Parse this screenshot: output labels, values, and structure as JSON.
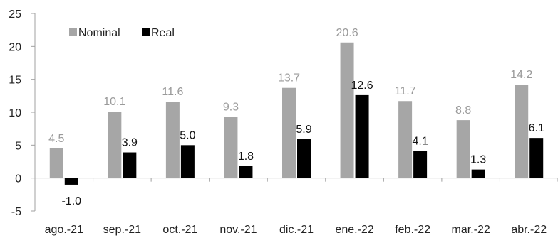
{
  "chart_data": {
    "type": "bar",
    "categories": [
      "ago.-21",
      "sep.-21",
      "oct.-21",
      "nov.-21",
      "dic.-21",
      "ene.-22",
      "feb.-22",
      "mar.-22",
      "abr.-22"
    ],
    "series": [
      {
        "name": "Nominal",
        "color": "#a6a6a6",
        "values": [
          4.5,
          10.1,
          11.6,
          9.3,
          13.7,
          20.6,
          11.7,
          8.8,
          14.2
        ],
        "labels": [
          "4.5",
          "10.1",
          "11.6",
          "9.3",
          "13.7",
          "20.6",
          "11.7",
          "8.8",
          "14.2"
        ]
      },
      {
        "name": "Real",
        "color": "#000000",
        "values": [
          -1.0,
          3.9,
          5.0,
          1.8,
          5.9,
          12.6,
          4.1,
          1.3,
          6.1
        ],
        "labels": [
          "-1.0",
          "3.9",
          "5.0",
          "1.8",
          "5.9",
          "12.6",
          "4.1",
          "1.3",
          "6.1"
        ]
      }
    ],
    "ylim": [
      -5,
      25
    ],
    "yticks": [
      -5,
      0,
      5,
      10,
      15,
      20,
      25
    ],
    "ytick_labels": [
      "-5",
      "0",
      "5",
      "10",
      "15",
      "20",
      "25"
    ],
    "legend_placement": "top-left",
    "grid": false,
    "title": "",
    "xlabel": "",
    "ylabel": ""
  }
}
